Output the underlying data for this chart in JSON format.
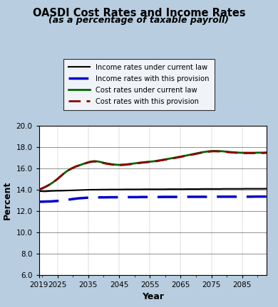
{
  "title": "OASDI Cost Rates and Income Rates",
  "subtitle": "(as a percentage of taxable payroll)",
  "xlabel": "Year",
  "ylabel": "Percent",
  "xlim": [
    2019,
    2093
  ],
  "ylim": [
    6.0,
    20.0
  ],
  "yticks": [
    6.0,
    8.0,
    10.0,
    12.0,
    14.0,
    16.0,
    18.0,
    20.0
  ],
  "xticks": [
    2019,
    2025,
    2035,
    2045,
    2055,
    2065,
    2075,
    2085
  ],
  "background_color": "#b8cde0",
  "plot_background": "#ffffff",
  "legend_labels": [
    "Income rates under current law",
    "Income rates with this provision",
    "Cost rates under current law",
    "Cost rates with this provision"
  ],
  "income_current_law_x": [
    2019,
    2020,
    2021,
    2022,
    2023,
    2024,
    2025,
    2026,
    2027,
    2028,
    2029,
    2030,
    2031,
    2032,
    2033,
    2034,
    2035,
    2036,
    2037,
    2038,
    2039,
    2040,
    2041,
    2042,
    2043,
    2044,
    2045,
    2046,
    2047,
    2048,
    2049,
    2050,
    2051,
    2052,
    2053,
    2054,
    2055,
    2056,
    2057,
    2058,
    2059,
    2060,
    2061,
    2062,
    2063,
    2064,
    2065,
    2066,
    2067,
    2068,
    2069,
    2070,
    2071,
    2072,
    2073,
    2074,
    2075,
    2076,
    2077,
    2078,
    2079,
    2080,
    2081,
    2082,
    2083,
    2084,
    2085,
    2086,
    2087,
    2088,
    2089,
    2090,
    2091,
    2092,
    2093
  ],
  "income_current_law_y": [
    13.87,
    13.85,
    13.84,
    13.86,
    13.88,
    13.89,
    13.9,
    13.9,
    13.91,
    13.92,
    13.93,
    13.94,
    13.95,
    13.96,
    13.97,
    13.98,
    13.99,
    14.0,
    14.0,
    14.0,
    14.01,
    14.01,
    14.01,
    14.02,
    14.02,
    14.02,
    14.02,
    14.02,
    14.03,
    14.03,
    14.03,
    14.03,
    14.03,
    14.03,
    14.04,
    14.04,
    14.04,
    14.04,
    14.04,
    14.04,
    14.04,
    14.04,
    14.05,
    14.05,
    14.05,
    14.05,
    14.05,
    14.05,
    14.06,
    14.06,
    14.06,
    14.06,
    14.06,
    14.07,
    14.07,
    14.07,
    14.07,
    14.07,
    14.07,
    14.07,
    14.08,
    14.08,
    14.08,
    14.08,
    14.08,
    14.08,
    14.08,
    14.09,
    14.09,
    14.09,
    14.09,
    14.09,
    14.09,
    14.09,
    14.1
  ],
  "income_provision_x": [
    2019,
    2020,
    2021,
    2022,
    2023,
    2024,
    2025,
    2026,
    2027,
    2028,
    2029,
    2030,
    2031,
    2032,
    2033,
    2034,
    2035,
    2036,
    2037,
    2038,
    2039,
    2040,
    2041,
    2042,
    2043,
    2044,
    2045,
    2046,
    2047,
    2048,
    2049,
    2050,
    2051,
    2052,
    2053,
    2054,
    2055,
    2056,
    2057,
    2058,
    2059,
    2060,
    2061,
    2062,
    2063,
    2064,
    2065,
    2066,
    2067,
    2068,
    2069,
    2070,
    2071,
    2072,
    2073,
    2074,
    2075,
    2076,
    2077,
    2078,
    2079,
    2080,
    2081,
    2082,
    2083,
    2084,
    2085,
    2086,
    2087,
    2088,
    2089,
    2090,
    2091,
    2092,
    2093
  ],
  "income_provision_y": [
    12.87,
    12.87,
    12.88,
    12.89,
    12.9,
    12.92,
    12.94,
    12.97,
    13.0,
    13.04,
    13.08,
    13.12,
    13.16,
    13.19,
    13.21,
    13.23,
    13.25,
    13.26,
    13.27,
    13.27,
    13.28,
    13.28,
    13.28,
    13.29,
    13.29,
    13.29,
    13.29,
    13.3,
    13.3,
    13.3,
    13.3,
    13.3,
    13.3,
    13.31,
    13.31,
    13.31,
    13.31,
    13.31,
    13.31,
    13.31,
    13.32,
    13.32,
    13.32,
    13.32,
    13.32,
    13.32,
    13.32,
    13.32,
    13.33,
    13.33,
    13.33,
    13.33,
    13.33,
    13.33,
    13.33,
    13.33,
    13.33,
    13.33,
    13.34,
    13.34,
    13.34,
    13.34,
    13.34,
    13.34,
    13.34,
    13.34,
    13.34,
    13.34,
    13.34,
    13.34,
    13.35,
    13.35,
    13.35,
    13.35,
    13.35
  ],
  "cost_current_law_x": [
    2019,
    2020,
    2021,
    2022,
    2023,
    2024,
    2025,
    2026,
    2027,
    2028,
    2029,
    2030,
    2031,
    2032,
    2033,
    2034,
    2035,
    2036,
    2037,
    2038,
    2039,
    2040,
    2041,
    2042,
    2043,
    2044,
    2045,
    2046,
    2047,
    2048,
    2049,
    2050,
    2051,
    2052,
    2053,
    2054,
    2055,
    2056,
    2057,
    2058,
    2059,
    2060,
    2061,
    2062,
    2063,
    2064,
    2065,
    2066,
    2067,
    2068,
    2069,
    2070,
    2071,
    2072,
    2073,
    2074,
    2075,
    2076,
    2077,
    2078,
    2079,
    2080,
    2081,
    2082,
    2083,
    2084,
    2085,
    2086,
    2087,
    2088,
    2089,
    2090,
    2091,
    2092,
    2093
  ],
  "cost_current_law_y": [
    14.0,
    14.12,
    14.25,
    14.4,
    14.58,
    14.78,
    15.0,
    15.25,
    15.5,
    15.72,
    15.9,
    16.05,
    16.18,
    16.28,
    16.38,
    16.48,
    16.58,
    16.65,
    16.68,
    16.66,
    16.6,
    16.53,
    16.47,
    16.42,
    16.38,
    16.35,
    16.33,
    16.35,
    16.37,
    16.4,
    16.43,
    16.47,
    16.51,
    16.55,
    16.58,
    16.61,
    16.63,
    16.66,
    16.7,
    16.75,
    16.8,
    16.85,
    16.9,
    16.95,
    17.0,
    17.06,
    17.11,
    17.17,
    17.22,
    17.28,
    17.34,
    17.4,
    17.46,
    17.52,
    17.56,
    17.6,
    17.63,
    17.64,
    17.63,
    17.62,
    17.6,
    17.57,
    17.54,
    17.52,
    17.5,
    17.48,
    17.47,
    17.47,
    17.47,
    17.47,
    17.47,
    17.48,
    17.48,
    17.48,
    17.5
  ],
  "cost_provision_x": [
    2019,
    2020,
    2021,
    2022,
    2023,
    2024,
    2025,
    2026,
    2027,
    2028,
    2029,
    2030,
    2031,
    2032,
    2033,
    2034,
    2035,
    2036,
    2037,
    2038,
    2039,
    2040,
    2041,
    2042,
    2043,
    2044,
    2045,
    2046,
    2047,
    2048,
    2049,
    2050,
    2051,
    2052,
    2053,
    2054,
    2055,
    2056,
    2057,
    2058,
    2059,
    2060,
    2061,
    2062,
    2063,
    2064,
    2065,
    2066,
    2067,
    2068,
    2069,
    2070,
    2071,
    2072,
    2073,
    2074,
    2075,
    2076,
    2077,
    2078,
    2079,
    2080,
    2081,
    2082,
    2083,
    2084,
    2085,
    2086,
    2087,
    2088,
    2089,
    2090,
    2091,
    2092,
    2093
  ],
  "cost_provision_y": [
    14.0,
    14.12,
    14.25,
    14.4,
    14.58,
    14.78,
    15.0,
    15.25,
    15.5,
    15.72,
    15.9,
    16.05,
    16.18,
    16.28,
    16.37,
    16.46,
    16.55,
    16.62,
    16.65,
    16.63,
    16.57,
    16.5,
    16.44,
    16.39,
    16.35,
    16.32,
    16.3,
    16.32,
    16.34,
    16.37,
    16.4,
    16.44,
    16.48,
    16.52,
    16.55,
    16.58,
    16.6,
    16.63,
    16.67,
    16.72,
    16.77,
    16.82,
    16.87,
    16.92,
    16.97,
    17.03,
    17.08,
    17.14,
    17.19,
    17.25,
    17.31,
    17.37,
    17.43,
    17.49,
    17.53,
    17.57,
    17.6,
    17.61,
    17.6,
    17.59,
    17.57,
    17.54,
    17.51,
    17.49,
    17.47,
    17.45,
    17.44,
    17.44,
    17.44,
    17.44,
    17.44,
    17.45,
    17.45,
    17.45,
    17.47
  ]
}
